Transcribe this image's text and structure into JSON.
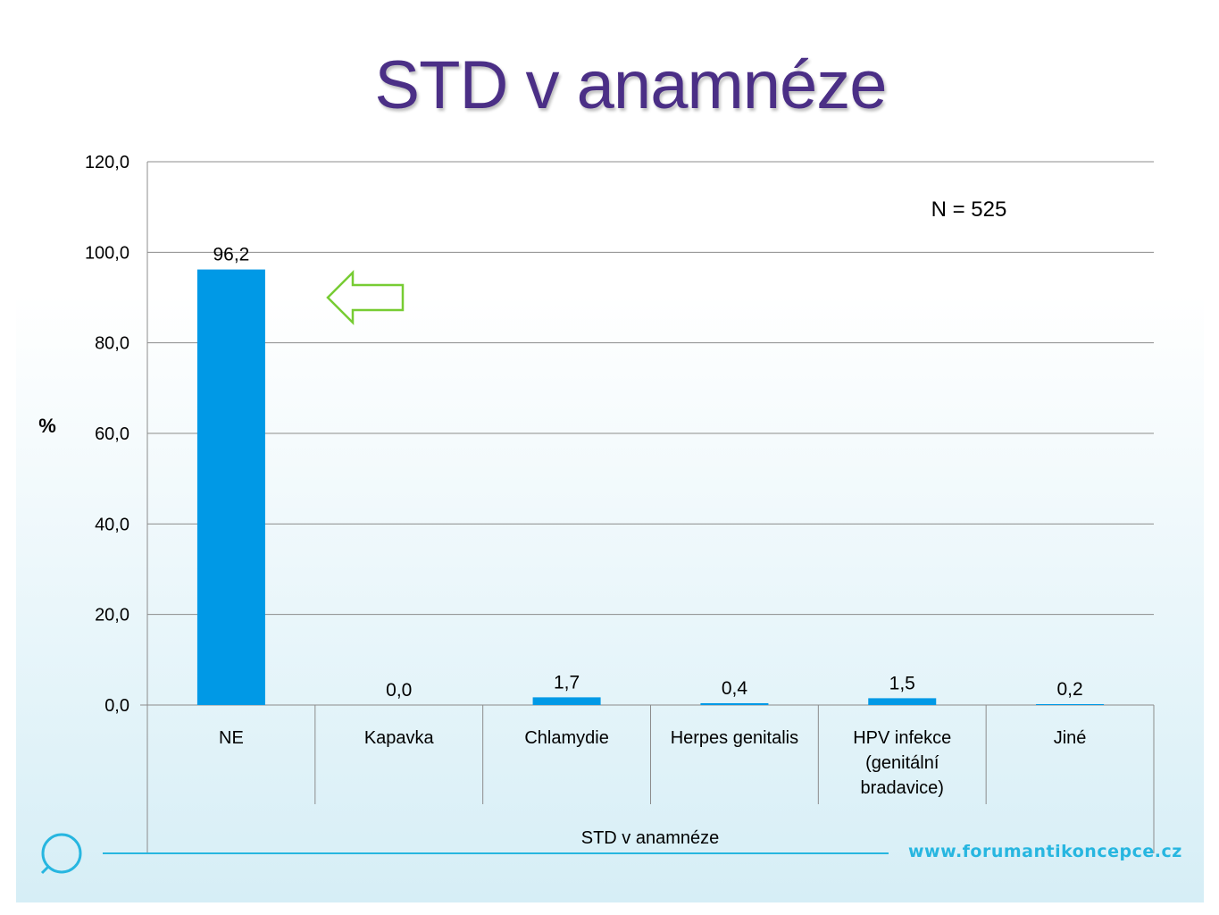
{
  "slide": {
    "title": "STD v anamnéze",
    "website": "www.forumantikoncepce.cz",
    "sample_note": "N = 525"
  },
  "colors": {
    "title": "#4b2f86",
    "bar": "#0099e6",
    "arrow": "#77cc33",
    "accent_line": "#27b6e0"
  },
  "icons": [
    "speech-bubble-logo-icon",
    "left-arrow-icon"
  ],
  "chart_data": {
    "type": "bar",
    "ylabel": "%",
    "xlabel": "STD v anamnéze",
    "ylim": [
      0,
      120
    ],
    "yticks": [
      "0,0",
      "20,0",
      "40,0",
      "60,0",
      "80,0",
      "100,0",
      "120,0"
    ],
    "ytick_values": [
      0,
      20,
      40,
      60,
      80,
      100,
      120
    ],
    "grid": true,
    "categories": [
      "NE",
      "Kapavka",
      "Chlamydie",
      "Herpes genitalis",
      "HPV infekce (genitální bradavice)",
      "Jiné"
    ],
    "category_lines": [
      [
        "NE"
      ],
      [
        "Kapavka"
      ],
      [
        "Chlamydie"
      ],
      [
        "Herpes genitalis"
      ],
      [
        "HPV infekce",
        "(genitální",
        "bradavice)"
      ],
      [
        "Jiné"
      ]
    ],
    "values": [
      96.2,
      0.0,
      1.7,
      0.4,
      1.5,
      0.2
    ],
    "value_labels": [
      "96,2",
      "0,0",
      "1,7",
      "0,4",
      "1,5",
      "0,2"
    ],
    "highlighted_category": "NE"
  }
}
